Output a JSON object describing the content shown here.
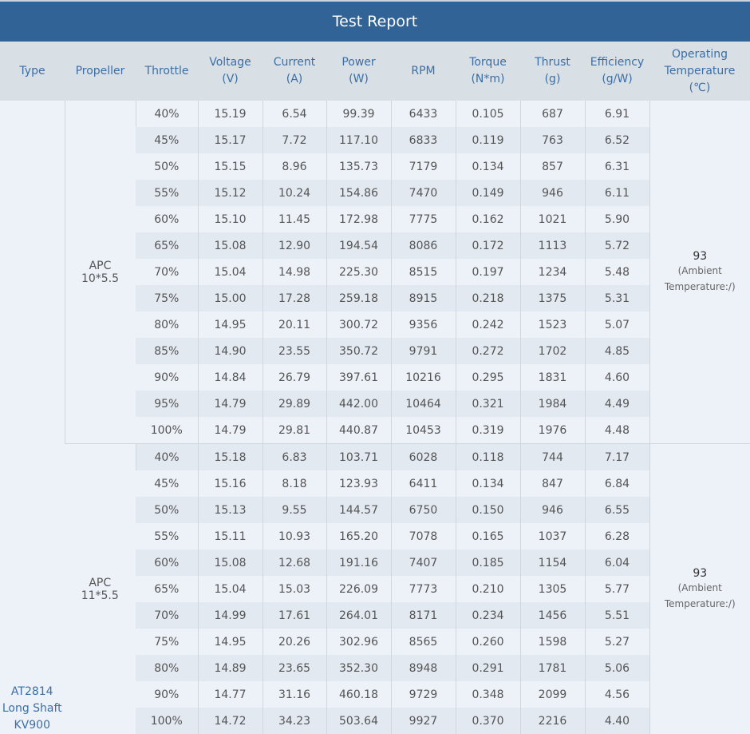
{
  "title": "Test Report",
  "headers": [
    [
      "Type"
    ],
    [
      "Propeller"
    ],
    [
      "Throttle"
    ],
    [
      "Voltage",
      "(V)"
    ],
    [
      "Current",
      "(A)"
    ],
    [
      "Power",
      "(W)"
    ],
    [
      "RPM"
    ],
    [
      "Torque",
      "(N*m)"
    ],
    [
      "Thrust",
      "(g)"
    ],
    [
      "Efficiency",
      "(g/W)"
    ],
    [
      "Operating",
      "Temperature",
      "(℃)"
    ]
  ],
  "type": [
    "AT2814",
    "Long Shaft",
    "KV900"
  ],
  "groups": [
    {
      "propeller": [
        "APC",
        "10*5.5"
      ],
      "temperature": "93",
      "ambient": [
        "(Ambient",
        "Temperature:/)"
      ],
      "rows": [
        [
          "40%",
          "15.19",
          "6.54",
          "99.39",
          "6433",
          "0.105",
          "687",
          "6.91"
        ],
        [
          "45%",
          "15.17",
          "7.72",
          "117.10",
          "6833",
          "0.119",
          "763",
          "6.52"
        ],
        [
          "50%",
          "15.15",
          "8.96",
          "135.73",
          "7179",
          "0.134",
          "857",
          "6.31"
        ],
        [
          "55%",
          "15.12",
          "10.24",
          "154.86",
          "7470",
          "0.149",
          "946",
          "6.11"
        ],
        [
          "60%",
          "15.10",
          "11.45",
          "172.98",
          "7775",
          "0.162",
          "1021",
          "5.90"
        ],
        [
          "65%",
          "15.08",
          "12.90",
          "194.54",
          "8086",
          "0.172",
          "1113",
          "5.72"
        ],
        [
          "70%",
          "15.04",
          "14.98",
          "225.30",
          "8515",
          "0.197",
          "1234",
          "5.48"
        ],
        [
          "75%",
          "15.00",
          "17.28",
          "259.18",
          "8915",
          "0.218",
          "1375",
          "5.31"
        ],
        [
          "80%",
          "14.95",
          "20.11",
          "300.72",
          "9356",
          "0.242",
          "1523",
          "5.07"
        ],
        [
          "85%",
          "14.90",
          "23.55",
          "350.72",
          "9791",
          "0.272",
          "1702",
          "4.85"
        ],
        [
          "90%",
          "14.84",
          "26.79",
          "397.61",
          "10216",
          "0.295",
          "1831",
          "4.60"
        ],
        [
          "95%",
          "14.79",
          "29.89",
          "442.00",
          "10464",
          "0.321",
          "1984",
          "4.49"
        ],
        [
          "100%",
          "14.79",
          "29.81",
          "440.87",
          "10453",
          "0.319",
          "1976",
          "4.48"
        ]
      ]
    },
    {
      "propeller": [
        "APC",
        "11*5.5"
      ],
      "temperature": "93",
      "ambient": [
        "(Ambient",
        "Temperature:/)"
      ],
      "rows": [
        [
          "40%",
          "15.18",
          "6.83",
          "103.71",
          "6028",
          "0.118",
          "744",
          "7.17"
        ],
        [
          "45%",
          "15.16",
          "8.18",
          "123.93",
          "6411",
          "0.134",
          "847",
          "6.84"
        ],
        [
          "50%",
          "15.13",
          "9.55",
          "144.57",
          "6750",
          "0.150",
          "946",
          "6.55"
        ],
        [
          "55%",
          "15.11",
          "10.93",
          "165.20",
          "7078",
          "0.165",
          "1037",
          "6.28"
        ],
        [
          "60%",
          "15.08",
          "12.68",
          "191.16",
          "7407",
          "0.185",
          "1154",
          "6.04"
        ],
        [
          "65%",
          "15.04",
          "15.03",
          "226.09",
          "7773",
          "0.210",
          "1305",
          "5.77"
        ],
        [
          "70%",
          "14.99",
          "17.61",
          "264.01",
          "8171",
          "0.234",
          "1456",
          "5.51"
        ],
        [
          "75%",
          "14.95",
          "20.26",
          "302.96",
          "8565",
          "0.260",
          "1598",
          "5.27"
        ],
        [
          "80%",
          "14.89",
          "23.65",
          "352.30",
          "8948",
          "0.291",
          "1781",
          "5.06"
        ],
        [
          "90%",
          "14.77",
          "31.16",
          "460.18",
          "9729",
          "0.348",
          "2099",
          "4.56"
        ],
        [
          "100%",
          "14.72",
          "34.23",
          "503.64",
          "9927",
          "0.370",
          "2216",
          "4.40"
        ]
      ]
    }
  ]
}
